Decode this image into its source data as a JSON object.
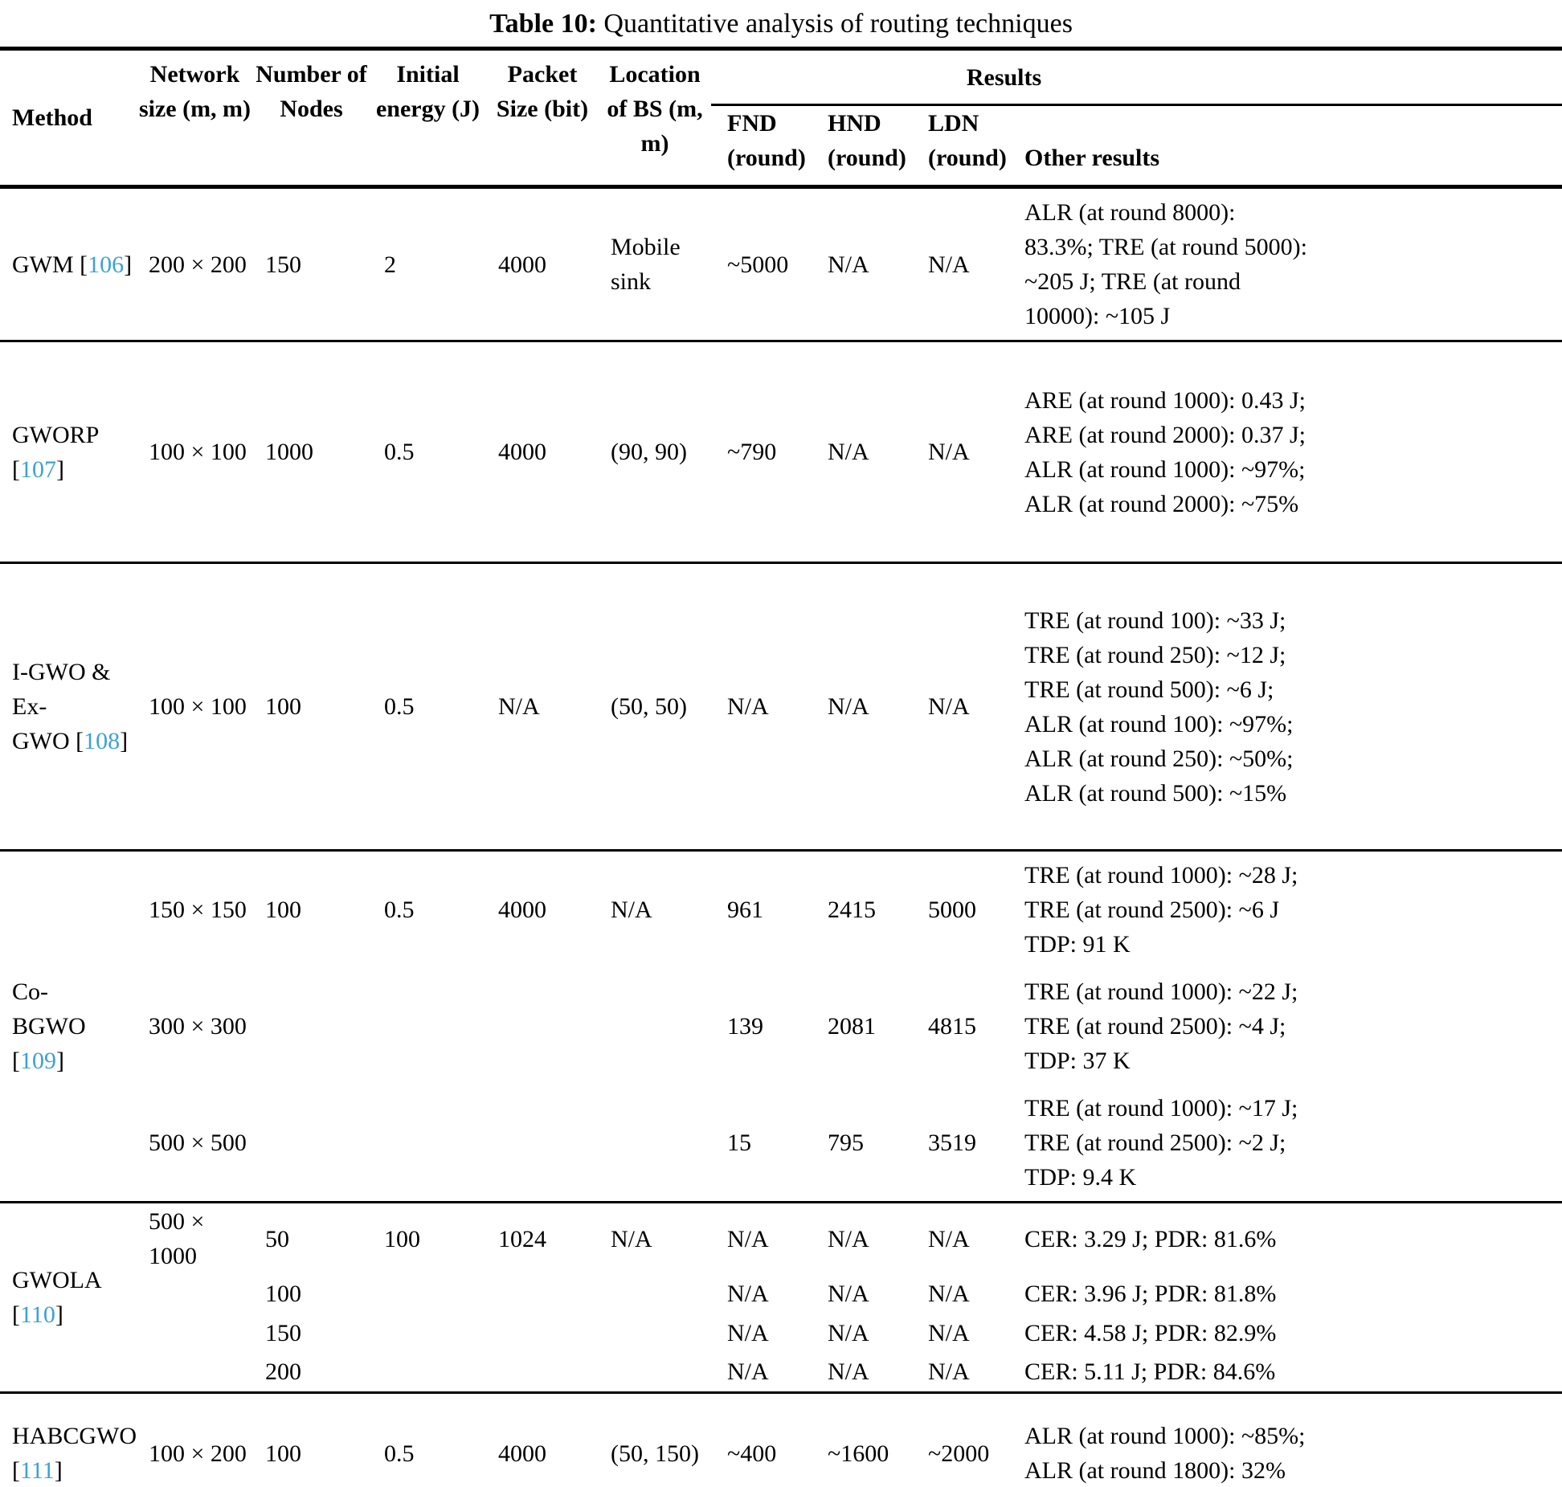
{
  "caption": {
    "label": "Table 10:",
    "text": " Quantitative analysis of routing techniques"
  },
  "colors": {
    "citation_blue": "#3ba1d9",
    "rule_black": "#000000"
  },
  "citation_open": "[",
  "citation_close": "]",
  "header": {
    "method": "Method",
    "network": "Network size (m, m)",
    "nodes": "Number of Nodes",
    "energy": "Initial energy (J)",
    "packet": "Packet Size (bit)",
    "bs": "Location of BS (m, m)",
    "results": "Results",
    "fnd": "FND (round)",
    "hnd": "HND (round)",
    "ldn": "LDN (round)",
    "other": "Other results"
  },
  "rows": [
    {
      "method": "GWM ",
      "citation": "106",
      "subrows": [
        {
          "network": "200 × 200",
          "nodes": "150",
          "energy": "2",
          "packet": "4000",
          "bs": "Mobile sink",
          "fnd": "~5000",
          "hnd": "N/A",
          "ldn": "N/A",
          "other": "ALR (at round 8000): 83.3%; TRE (at round 5000): ~205 J; TRE (at round 10000): ~105 J"
        }
      ]
    },
    {
      "method": "GWORP ",
      "citation": "107",
      "subrows": [
        {
          "network": "100 × 100",
          "nodes": "1000",
          "energy": "0.5",
          "packet": "4000",
          "bs": "(90, 90)",
          "fnd": "~790",
          "hnd": "N/A",
          "ldn": "N/A",
          "other": "ARE (at round 1000): 0.43 J; ARE (at round 2000): 0.37 J; ALR (at round 1000): ~97%; ALR (at round 2000): ~75%"
        }
      ]
    },
    {
      "method": "I-GWO &\nEx-\nGWO ",
      "citation": "108",
      "subrows": [
        {
          "network": "100 × 100",
          "nodes": "100",
          "energy": "0.5",
          "packet": "N/A",
          "bs": "(50, 50)",
          "fnd": "N/A",
          "hnd": "N/A",
          "ldn": "N/A",
          "other": "TRE (at round 100): ~33 J; TRE (at round 250): ~12 J; TRE (at round 500): ~6 J; ALR (at round 100): ~97%; ALR (at round 250): ~50%; ALR (at round 500): ~15%"
        }
      ]
    },
    {
      "method": "Co-\nBGWO ",
      "citation": "109",
      "subrows": [
        {
          "network": "150 × 150",
          "nodes": "100",
          "energy": "0.5",
          "packet": "4000",
          "bs": "N/A",
          "fnd": "961",
          "hnd": "2415",
          "ldn": "5000",
          "other": "TRE (at round 1000): ~28 J; TRE (at round 2500): ~6 J TDP: 91 K"
        },
        {
          "network": "300 × 300",
          "nodes": "",
          "energy": "",
          "packet": "",
          "bs": "",
          "fnd": "139",
          "hnd": "2081",
          "ldn": "4815",
          "other": "TRE (at round 1000): ~22 J; TRE (at round 2500): ~4 J; TDP: 37 K"
        },
        {
          "network": "500 × 500",
          "nodes": "",
          "energy": "",
          "packet": "",
          "bs": "",
          "fnd": "15",
          "hnd": "795",
          "ldn": "3519",
          "other": "TRE (at round 1000): ~17 J; TRE (at round 2500): ~2 J; TDP: 9.4 K"
        }
      ]
    },
    {
      "method": "GWOLA\n",
      "citation": "110",
      "subrows": [
        {
          "network": "500 × 1000",
          "nodes": "50",
          "energy": "100",
          "packet": "1024",
          "bs": "N/A",
          "fnd": "N/A",
          "hnd": "N/A",
          "ldn": "N/A",
          "other": "CER: 3.29 J; PDR: 81.6%"
        },
        {
          "network": "",
          "nodes": "100",
          "energy": "",
          "packet": "",
          "bs": "",
          "fnd": "N/A",
          "hnd": "N/A",
          "ldn": "N/A",
          "other": "CER: 3.96 J; PDR: 81.8%"
        },
        {
          "network": "",
          "nodes": "150",
          "energy": "",
          "packet": "",
          "bs": "",
          "fnd": "N/A",
          "hnd": "N/A",
          "ldn": "N/A",
          "other": "CER: 4.58 J; PDR: 82.9%"
        },
        {
          "network": "",
          "nodes": "200",
          "energy": "",
          "packet": "",
          "bs": "",
          "fnd": "N/A",
          "hnd": "N/A",
          "ldn": "N/A",
          "other": "CER: 5.11 J; PDR: 84.6%"
        }
      ]
    },
    {
      "method": "HABCGWO\n",
      "citation": "111",
      "subrows": [
        {
          "network": "100 × 200",
          "nodes": "100",
          "energy": "0.5",
          "packet": "4000",
          "bs": "(50, 150)",
          "fnd": "~400",
          "hnd": "~1600",
          "ldn": "~2000",
          "other": "ALR (at round 1000): ~85%; ALR (at round 1800): 32%"
        }
      ]
    }
  ]
}
